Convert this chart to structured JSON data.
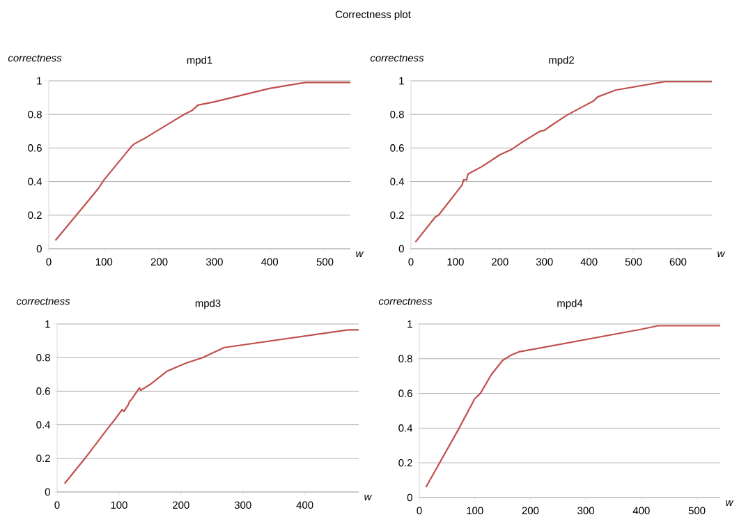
{
  "chart_data": [
    {
      "type": "other",
      "title": "Correctness plot"
    },
    {
      "type": "line",
      "title": "mpd1",
      "xlabel": "w",
      "ylabel": "correctness",
      "color": "#c0504d",
      "grid": "y",
      "xlim": [
        0,
        546
      ],
      "ylim": [
        0,
        1
      ],
      "xticks": [
        0,
        100,
        200,
        300,
        400,
        500
      ],
      "yticks": [
        0,
        0.2,
        0.4,
        0.6,
        0.8,
        1
      ],
      "x": [
        12,
        50,
        75,
        90,
        100,
        120,
        140,
        150,
        155,
        175,
        200,
        230,
        245,
        260,
        270,
        300,
        400,
        445,
        465,
        546
      ],
      "values": [
        0.05,
        0.2,
        0.3,
        0.36,
        0.41,
        0.49,
        0.57,
        0.61,
        0.625,
        0.66,
        0.71,
        0.77,
        0.8,
        0.825,
        0.855,
        0.875,
        0.955,
        0.98,
        0.99,
        0.99
      ]
    },
    {
      "type": "line",
      "title": "mpd2",
      "xlabel": "w",
      "ylabel": "correctness",
      "color": "#c0504d",
      "grid": "y",
      "xlim": [
        0,
        676
      ],
      "ylim": [
        0,
        1
      ],
      "xticks": [
        0,
        100,
        200,
        300,
        400,
        500,
        600
      ],
      "yticks": [
        0,
        0.2,
        0.4,
        0.6,
        0.8,
        1
      ],
      "x": [
        10,
        55,
        62,
        115,
        118,
        125,
        128,
        160,
        200,
        225,
        250,
        290,
        300,
        310,
        350,
        385,
        410,
        420,
        460,
        570,
        676
      ],
      "values": [
        0.04,
        0.19,
        0.2,
        0.38,
        0.41,
        0.41,
        0.445,
        0.49,
        0.56,
        0.59,
        0.635,
        0.7,
        0.705,
        0.725,
        0.795,
        0.845,
        0.88,
        0.905,
        0.945,
        0.995,
        0.995
      ]
    },
    {
      "type": "line",
      "title": "mpd3",
      "xlabel": "w",
      "ylabel": "correctness",
      "color": "#c0504d",
      "grid": "y",
      "xlim": [
        0,
        487
      ],
      "ylim": [
        0,
        1
      ],
      "xticks": [
        0,
        100,
        200,
        300,
        400
      ],
      "yticks": [
        0,
        0.2,
        0.4,
        0.6,
        0.8,
        1
      ],
      "x": [
        12,
        45,
        80,
        95,
        105,
        108,
        115,
        117,
        120,
        133,
        135,
        150,
        178,
        210,
        235,
        270,
        470,
        487
      ],
      "values": [
        0.05,
        0.2,
        0.37,
        0.44,
        0.49,
        0.48,
        0.52,
        0.54,
        0.55,
        0.62,
        0.605,
        0.64,
        0.72,
        0.77,
        0.8,
        0.86,
        0.965,
        0.965
      ]
    },
    {
      "type": "line",
      "title": "mpd4",
      "xlabel": "w",
      "ylabel": "correctness",
      "color": "#c0504d",
      "grid": "y",
      "xlim": [
        0,
        542
      ],
      "ylim": [
        0,
        1
      ],
      "xticks": [
        0,
        100,
        200,
        300,
        400,
        500
      ],
      "yticks": [
        0,
        0.2,
        0.4,
        0.6,
        0.8,
        1
      ],
      "x": [
        12,
        70,
        100,
        110,
        130,
        150,
        165,
        180,
        400,
        430,
        542
      ],
      "values": [
        0.06,
        0.39,
        0.57,
        0.6,
        0.71,
        0.79,
        0.82,
        0.84,
        0.97,
        0.99,
        0.99
      ]
    }
  ]
}
